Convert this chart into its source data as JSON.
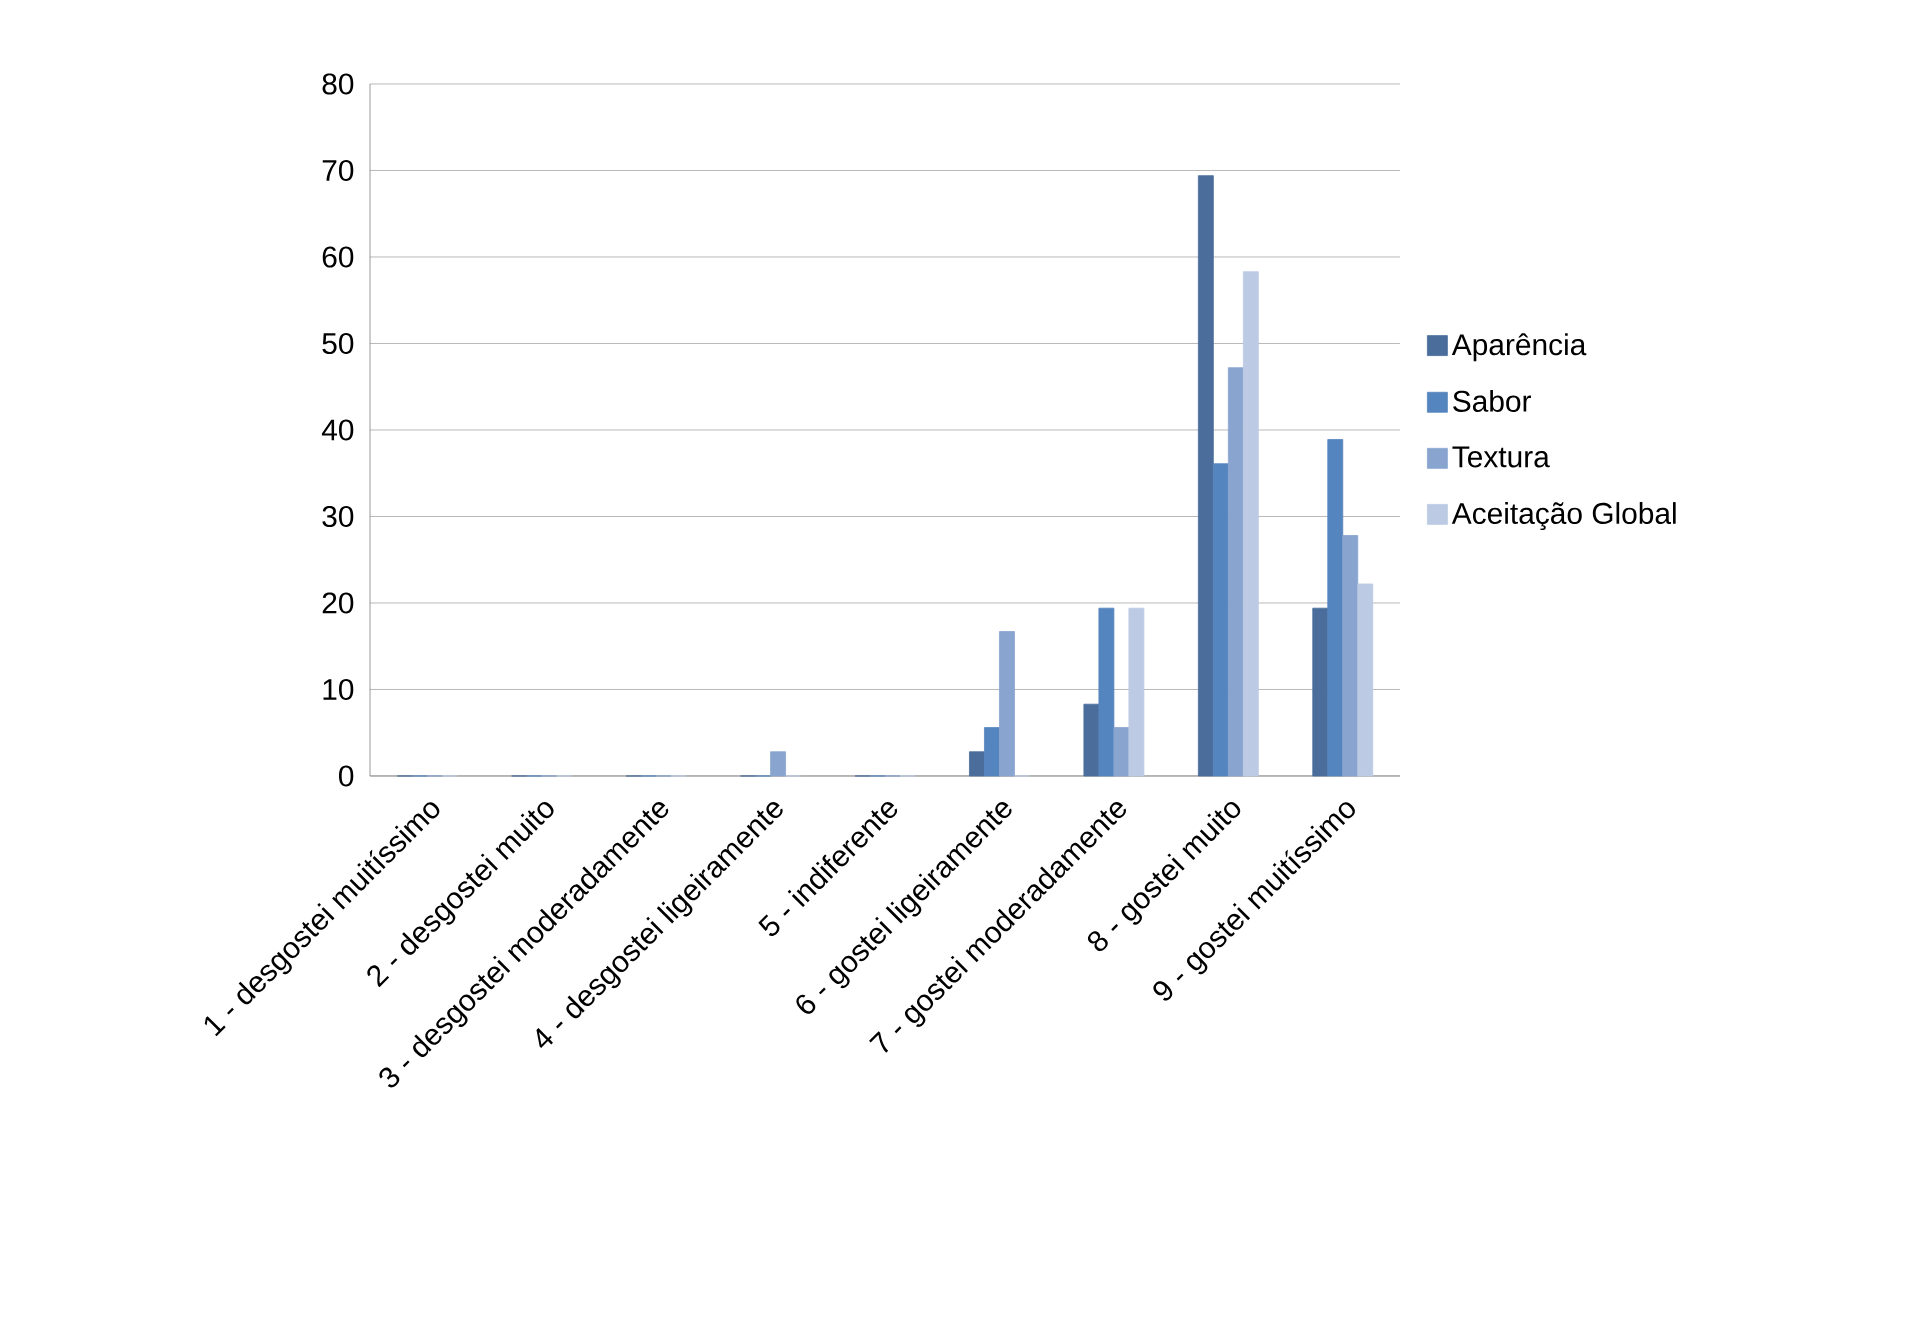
{
  "chart_data": {
    "type": "bar",
    "categories": [
      "1 - desgostei muitíssimo",
      "2 - desgostei muito",
      "3 - desgostei moderadamente",
      "4 - desgostei ligeiramente",
      "5 - indiferente",
      "6 - gostei ligeiramente",
      "7 - gostei moderadamente",
      "8 - gostei muito",
      "9 - gostei muitíssimo"
    ],
    "series": [
      {
        "name": "Aparência",
        "color": "#4a6d9b",
        "values": [
          0,
          0,
          0,
          0,
          0,
          2.8,
          8.3,
          69.4,
          19.4
        ]
      },
      {
        "name": "Sabor",
        "color": "#5585be",
        "values": [
          0,
          0,
          0,
          0,
          0,
          5.6,
          19.4,
          36.1,
          38.9
        ]
      },
      {
        "name": "Textura",
        "color": "#89a5cf",
        "values": [
          0,
          0,
          0,
          2.8,
          0,
          16.7,
          5.6,
          47.2,
          27.8
        ]
      },
      {
        "name": "Aceitação Global",
        "color": "#bccbe3",
        "values": [
          0,
          0,
          0,
          0,
          0,
          0,
          19.4,
          58.3,
          22.2
        ]
      }
    ],
    "ylim": [
      0,
      80
    ],
    "yticks": [
      0,
      10,
      20,
      30,
      40,
      50,
      60,
      70,
      80
    ],
    "grid": "y",
    "legend": "right"
  }
}
